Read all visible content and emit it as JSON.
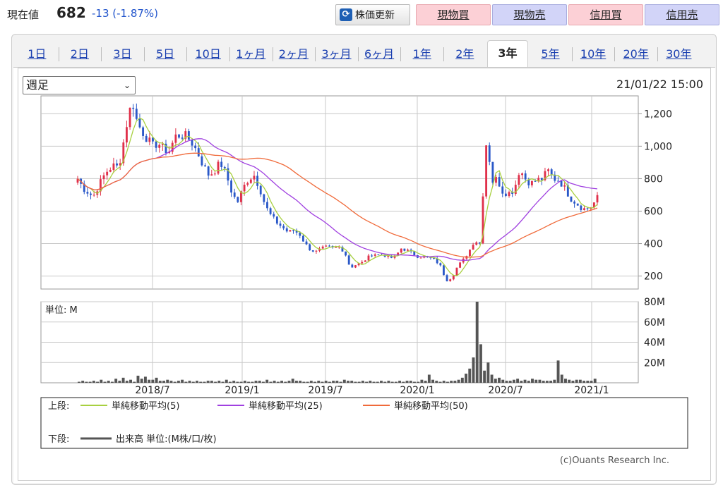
{
  "header": {
    "price_label": "現在値",
    "price_value": "682",
    "price_change": "-13 (-1.87%)",
    "refresh_label": "株価更新",
    "refresh_icon": "refresh-icon",
    "buttons": [
      {
        "label": "現物買",
        "kind": "buy"
      },
      {
        "label": "現物売",
        "kind": "sell"
      },
      {
        "label": "信用買",
        "kind": "buy"
      },
      {
        "label": "信用売",
        "kind": "sell"
      }
    ]
  },
  "tabs": [
    {
      "label": "1日",
      "active": false
    },
    {
      "label": "2日",
      "active": false
    },
    {
      "label": "3日",
      "active": false
    },
    {
      "label": "5日",
      "active": false
    },
    {
      "label": "10日",
      "active": false
    },
    {
      "label": "1ヶ月",
      "active": false
    },
    {
      "label": "2ヶ月",
      "active": false
    },
    {
      "label": "3ヶ月",
      "active": false
    },
    {
      "label": "6ヶ月",
      "active": false
    },
    {
      "label": "1年",
      "active": false
    },
    {
      "label": "2年",
      "active": false
    },
    {
      "label": "3年",
      "active": true
    },
    {
      "label": "5年",
      "active": false
    },
    {
      "label": "10年",
      "active": false
    },
    {
      "label": "20年",
      "active": false
    },
    {
      "label": "30年",
      "active": false
    }
  ],
  "controls": {
    "period_select": "週足",
    "timestamp": "21/01/22 15:00"
  },
  "chart_data": [
    {
      "type": "candlestick",
      "x_ticks": [
        "2018/7",
        "2019/1",
        "2019/7",
        "2020/1",
        "2020/7",
        "2021/1"
      ],
      "y_ticks": [
        "1,200",
        "1,000",
        "800",
        "600",
        "400",
        "200"
      ],
      "ylim": [
        120,
        1310
      ],
      "price_path": [
        [
          0,
          800
        ],
        [
          8,
          740
        ],
        [
          22,
          690
        ],
        [
          30,
          760
        ],
        [
          40,
          840
        ],
        [
          50,
          880
        ],
        [
          58,
          870
        ],
        [
          66,
          1050
        ],
        [
          72,
          1200
        ],
        [
          78,
          1270
        ],
        [
          84,
          1150
        ],
        [
          90,
          1100
        ],
        [
          98,
          1050
        ],
        [
          106,
          1000
        ],
        [
          114,
          1020
        ],
        [
          122,
          980
        ],
        [
          130,
          970
        ],
        [
          138,
          1060
        ],
        [
          146,
          1070
        ],
        [
          154,
          1060
        ],
        [
          162,
          1020
        ],
        [
          170,
          960
        ],
        [
          178,
          880
        ],
        [
          186,
          820
        ],
        [
          194,
          850
        ],
        [
          202,
          900
        ],
        [
          210,
          830
        ],
        [
          218,
          720
        ],
        [
          226,
          650
        ],
        [
          234,
          740
        ],
        [
          242,
          800
        ],
        [
          250,
          820
        ],
        [
          258,
          740
        ],
        [
          266,
          630
        ],
        [
          274,
          570
        ],
        [
          282,
          530
        ],
        [
          290,
          500
        ],
        [
          298,
          470
        ],
        [
          306,
          480
        ],
        [
          314,
          460
        ],
        [
          322,
          400
        ],
        [
          330,
          360
        ],
        [
          338,
          350
        ],
        [
          346,
          370
        ],
        [
          354,
          380
        ],
        [
          362,
          370
        ],
        [
          370,
          380
        ],
        [
          378,
          350
        ],
        [
          386,
          250
        ],
        [
          394,
          270
        ],
        [
          402,
          280
        ],
        [
          410,
          310
        ],
        [
          418,
          340
        ],
        [
          426,
          330
        ],
        [
          434,
          330
        ],
        [
          442,
          310
        ],
        [
          450,
          320
        ],
        [
          458,
          370
        ],
        [
          466,
          360
        ],
        [
          474,
          340
        ],
        [
          482,
          320
        ],
        [
          490,
          320
        ],
        [
          498,
          310
        ],
        [
          506,
          300
        ],
        [
          514,
          260
        ],
        [
          522,
          170
        ],
        [
          530,
          190
        ],
        [
          538,
          260
        ],
        [
          546,
          300
        ],
        [
          554,
          350
        ],
        [
          562,
          420
        ],
        [
          570,
          400
        ],
        [
          578,
          1020
        ],
        [
          582,
          980
        ],
        [
          586,
          780
        ],
        [
          594,
          800
        ],
        [
          602,
          720
        ],
        [
          610,
          710
        ],
        [
          618,
          730
        ],
        [
          626,
          860
        ],
        [
          634,
          800
        ],
        [
          642,
          770
        ],
        [
          650,
          790
        ],
        [
          658,
          800
        ],
        [
          666,
          850
        ],
        [
          674,
          800
        ],
        [
          682,
          790
        ],
        [
          690,
          740
        ],
        [
          698,
          680
        ],
        [
          706,
          650
        ],
        [
          714,
          620
        ],
        [
          720,
          610
        ],
        [
          728,
          630
        ],
        [
          736,
          682
        ]
      ],
      "series": [
        {
          "name": "単純移動平均(5)",
          "color": "#a8d040"
        },
        {
          "name": "単純移動平均(25)",
          "color": "#a040e0"
        },
        {
          "name": "単純移動平均(50)",
          "color": "#f06a3a"
        }
      ]
    },
    {
      "type": "bar",
      "unit_label": "単位: M",
      "y_ticks": [
        "80M",
        "60M",
        "40M",
        "20M"
      ],
      "ylim": [
        0,
        80
      ],
      "values": [
        1,
        2,
        1,
        1,
        2,
        1,
        3,
        1,
        2,
        1,
        4,
        2,
        5,
        2,
        3,
        1,
        7,
        4,
        6,
        3,
        3,
        5,
        2,
        2,
        3,
        2,
        1,
        2,
        3,
        1,
        2,
        1,
        2,
        1,
        1,
        2,
        2,
        1,
        2,
        1,
        3,
        1,
        2,
        1,
        1,
        2,
        1,
        1,
        2,
        2,
        1,
        3,
        1,
        2,
        1,
        2,
        1,
        2,
        4,
        2,
        2,
        1,
        1,
        2,
        1,
        2,
        1,
        2,
        1,
        2,
        2,
        1,
        3,
        2,
        2,
        1,
        1,
        2,
        1,
        2,
        1,
        1,
        2,
        1,
        2,
        1,
        1,
        2,
        1,
        2,
        2,
        1,
        1,
        3,
        2,
        8,
        3,
        2,
        1,
        2,
        1,
        2,
        2,
        3,
        5,
        9,
        14,
        25,
        80,
        38,
        12,
        20,
        8,
        4,
        5,
        3,
        2,
        2,
        3,
        4,
        2,
        3,
        2,
        4,
        3,
        3,
        2,
        2,
        2,
        3,
        22,
        8,
        4,
        3,
        2,
        3,
        3,
        2,
        2,
        2,
        4
      ],
      "color": "#555555"
    }
  ],
  "legend": {
    "upper_label": "上段:",
    "lower_label": "下段:",
    "volume_label": "出来高 単位:(M株/口/枚)"
  },
  "footer": {
    "copyright": "(c)Ouants Research Inc."
  }
}
